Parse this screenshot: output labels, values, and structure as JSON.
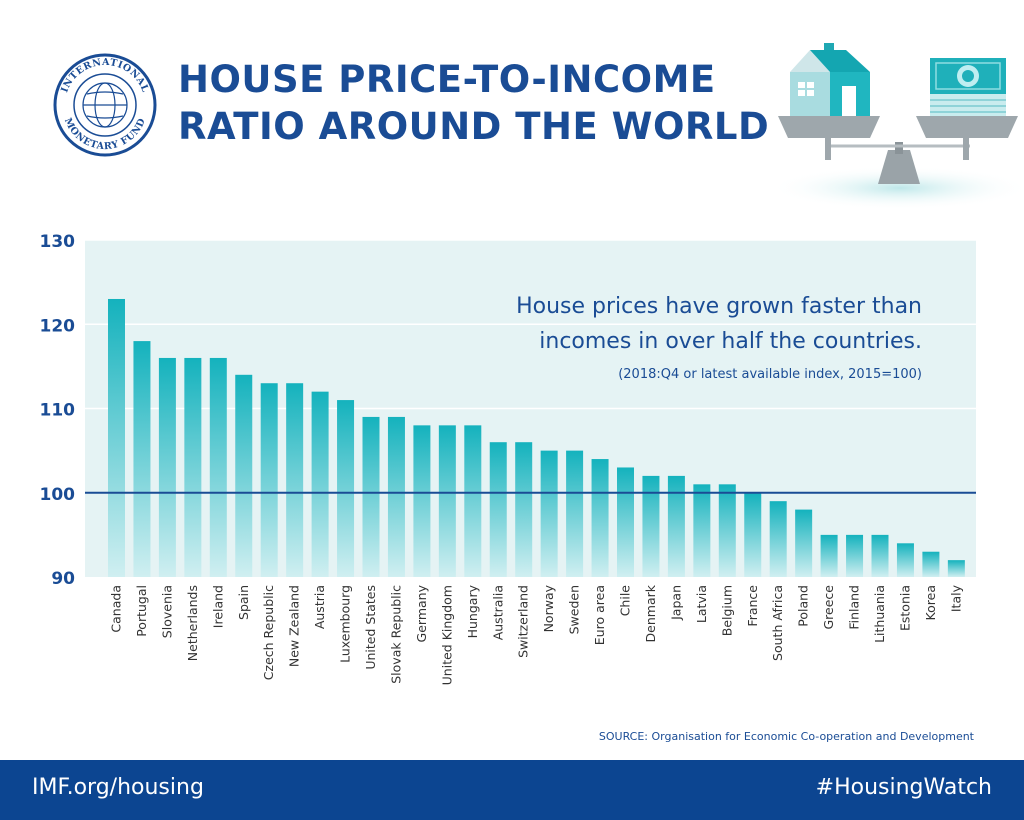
{
  "header": {
    "logo_text": "INTERNATIONAL MONETARY FUND",
    "title_line1": "HOUSE PRICE-TO-INCOME",
    "title_line2": "RATIO AROUND THE WORLD"
  },
  "footer": {
    "link": "IMF.org/housing",
    "hashtag": "#HousingWatch"
  },
  "colors": {
    "brand_blue": "#1a4c95",
    "footer_blue": "#0c4591",
    "bar_top": "#14b2bd",
    "bar_bottom": "#d0eff1",
    "plot_bg": "#e5f3f4"
  },
  "chart_data": {
    "type": "bar",
    "annotation_line1": "House prices have grown faster than",
    "annotation_line2": "incomes in over half the countries.",
    "annotation_note": "(2018:Q4 or latest available index, 2015=100)",
    "source": "SOURCE: Organisation for Economic Co-operation and Development",
    "ylim": [
      90,
      130
    ],
    "yticks": [
      "130",
      "120",
      "110",
      "100",
      "90"
    ],
    "reference_line": 100,
    "grid": true,
    "categories": [
      "Canada",
      "Portugal",
      "Slovenia",
      "Netherlands",
      "Ireland",
      "Spain",
      "Czech Republic",
      "New Zealand",
      "Austria",
      "Luxembourg",
      "United States",
      "Slovak Republic",
      "Germany",
      "United Kingdom",
      "Hungary",
      "Australia",
      "Switzerland",
      "Norway",
      "Sweden",
      "Euro area",
      "Chile",
      "Denmark",
      "Japan",
      "Latvia",
      "Belgium",
      "France",
      "South Africa",
      "Poland",
      "Greece",
      "Finland",
      "Lithuania",
      "Estonia",
      "Korea",
      "Italy"
    ],
    "values": [
      123,
      118,
      116,
      116,
      116,
      114,
      113,
      113,
      112,
      111,
      109,
      109,
      108,
      108,
      108,
      106,
      106,
      105,
      105,
      104,
      103,
      102,
      102,
      101,
      101,
      100,
      99,
      98,
      95,
      95,
      95,
      94,
      93,
      92
    ]
  }
}
